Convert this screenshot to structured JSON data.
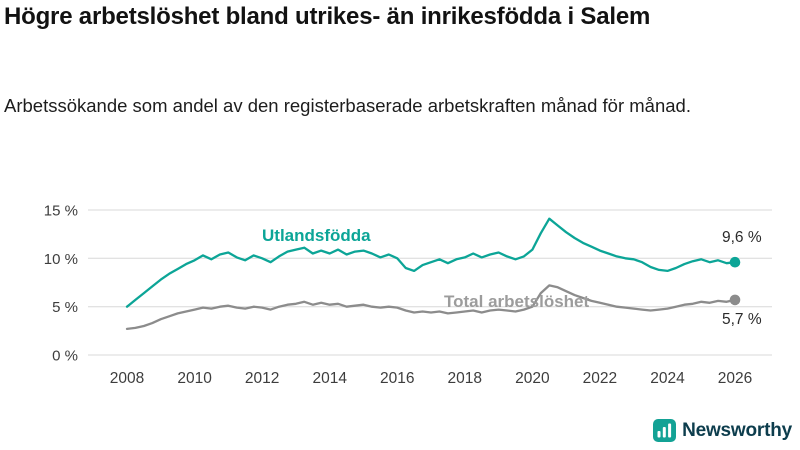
{
  "chart_data": {
    "type": "line",
    "title": "Högre arbetslöshet bland utrikes- än inrikesfödda i Salem",
    "subtitle": "Arbetssökande som andel av den registerbaserade arbetskraften månad för månad.",
    "xlabel": "",
    "ylabel": "",
    "xlim": [
      2007.5,
      2026.6
    ],
    "ylim": [
      0,
      15
    ],
    "grid": true,
    "legend_position": "inline",
    "x_ticks": [
      2008,
      2010,
      2012,
      2014,
      2016,
      2018,
      2020,
      2022,
      2024,
      2026
    ],
    "y_ticks": [
      {
        "value": 0,
        "label": "0 %"
      },
      {
        "value": 5,
        "label": "5 %"
      },
      {
        "value": 10,
        "label": "10 %"
      },
      {
        "value": 15,
        "label": "15 %"
      }
    ],
    "x": [
      2008,
      2008.25,
      2008.5,
      2008.75,
      2009,
      2009.25,
      2009.5,
      2009.75,
      2010,
      2010.25,
      2010.5,
      2010.75,
      2011,
      2011.25,
      2011.5,
      2011.75,
      2012,
      2012.25,
      2012.5,
      2012.75,
      2013,
      2013.25,
      2013.5,
      2013.75,
      2014,
      2014.25,
      2014.5,
      2014.75,
      2015,
      2015.25,
      2015.5,
      2015.75,
      2016,
      2016.25,
      2016.5,
      2016.75,
      2017,
      2017.25,
      2017.5,
      2017.75,
      2018,
      2018.25,
      2018.5,
      2018.75,
      2019,
      2019.25,
      2019.5,
      2019.75,
      2020,
      2020.25,
      2020.5,
      2020.75,
      2021,
      2021.25,
      2021.5,
      2021.75,
      2022,
      2022.25,
      2022.5,
      2022.75,
      2023,
      2023.25,
      2023.5,
      2023.75,
      2024,
      2024.25,
      2024.5,
      2024.75,
      2025,
      2025.25,
      2025.5,
      2025.75,
      2026
    ],
    "series": [
      {
        "name": "Utlandsfödda",
        "slug": "utlandsfodda",
        "color": "#0ca597",
        "end_label": "9,6 %",
        "values": [
          5.0,
          5.7,
          6.4,
          7.1,
          7.8,
          8.4,
          8.9,
          9.4,
          9.8,
          10.3,
          9.9,
          10.4,
          10.6,
          10.1,
          9.8,
          10.3,
          10.0,
          9.6,
          10.2,
          10.7,
          10.9,
          11.1,
          10.5,
          10.8,
          10.5,
          10.9,
          10.4,
          10.7,
          10.8,
          10.5,
          10.1,
          10.4,
          10.0,
          9.0,
          8.7,
          9.3,
          9.6,
          9.9,
          9.5,
          9.9,
          10.1,
          10.5,
          10.1,
          10.4,
          10.6,
          10.2,
          9.9,
          10.2,
          10.9,
          12.6,
          14.1,
          13.4,
          12.7,
          12.1,
          11.6,
          11.2,
          10.8,
          10.5,
          10.2,
          10.0,
          9.9,
          9.6,
          9.1,
          8.8,
          8.7,
          9.0,
          9.4,
          9.7,
          9.9,
          9.6,
          9.8,
          9.5,
          9.6
        ]
      },
      {
        "name": "Total arbetslöshet",
        "slug": "total-arbetsloshet",
        "color": "#8c8c8c",
        "label_color": "#9c9c9c",
        "end_label": "5,7 %",
        "values": [
          2.7,
          2.8,
          3.0,
          3.3,
          3.7,
          4.0,
          4.3,
          4.5,
          4.7,
          4.9,
          4.8,
          5.0,
          5.1,
          4.9,
          4.8,
          5.0,
          4.9,
          4.7,
          5.0,
          5.2,
          5.3,
          5.5,
          5.2,
          5.4,
          5.2,
          5.3,
          5.0,
          5.1,
          5.2,
          5.0,
          4.9,
          5.0,
          4.9,
          4.6,
          4.4,
          4.5,
          4.4,
          4.5,
          4.3,
          4.4,
          4.5,
          4.6,
          4.4,
          4.6,
          4.7,
          4.6,
          4.5,
          4.7,
          5.0,
          6.4,
          7.2,
          7.0,
          6.6,
          6.2,
          5.9,
          5.6,
          5.4,
          5.2,
          5.0,
          4.9,
          4.8,
          4.7,
          4.6,
          4.7,
          4.8,
          5.0,
          5.2,
          5.3,
          5.5,
          5.4,
          5.6,
          5.5,
          5.7
        ]
      }
    ]
  },
  "footer": {
    "brand": "Newsworthy",
    "logo_color": "#13a295",
    "text_color": "#0d3d4d"
  }
}
